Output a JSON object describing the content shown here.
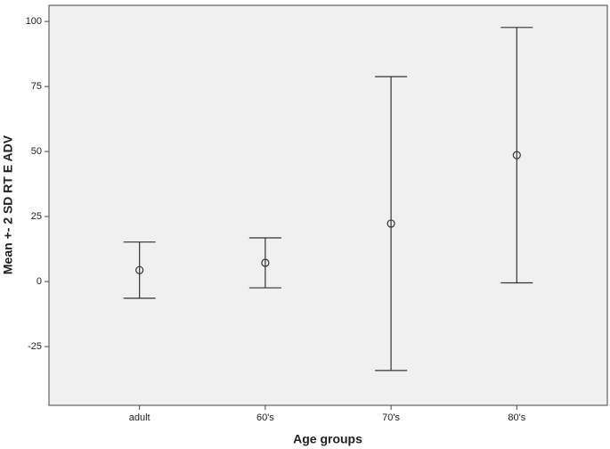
{
  "chart_data": {
    "type": "errorbar",
    "x_label": "Age groups",
    "y_label": "Mean +- 2 SD RT E ADV",
    "categories": [
      "adult",
      "60's",
      "70's",
      "80's"
    ],
    "values": [
      4.4,
      7.2,
      22.3,
      48.6
    ],
    "error": [
      10.8,
      9.6,
      56.5,
      49.1
    ],
    "color": "#333333",
    "ylim": [
      -47.6,
      106.2
    ],
    "yticks": [
      -25,
      0,
      25,
      50,
      75,
      100
    ],
    "grid": false
  }
}
